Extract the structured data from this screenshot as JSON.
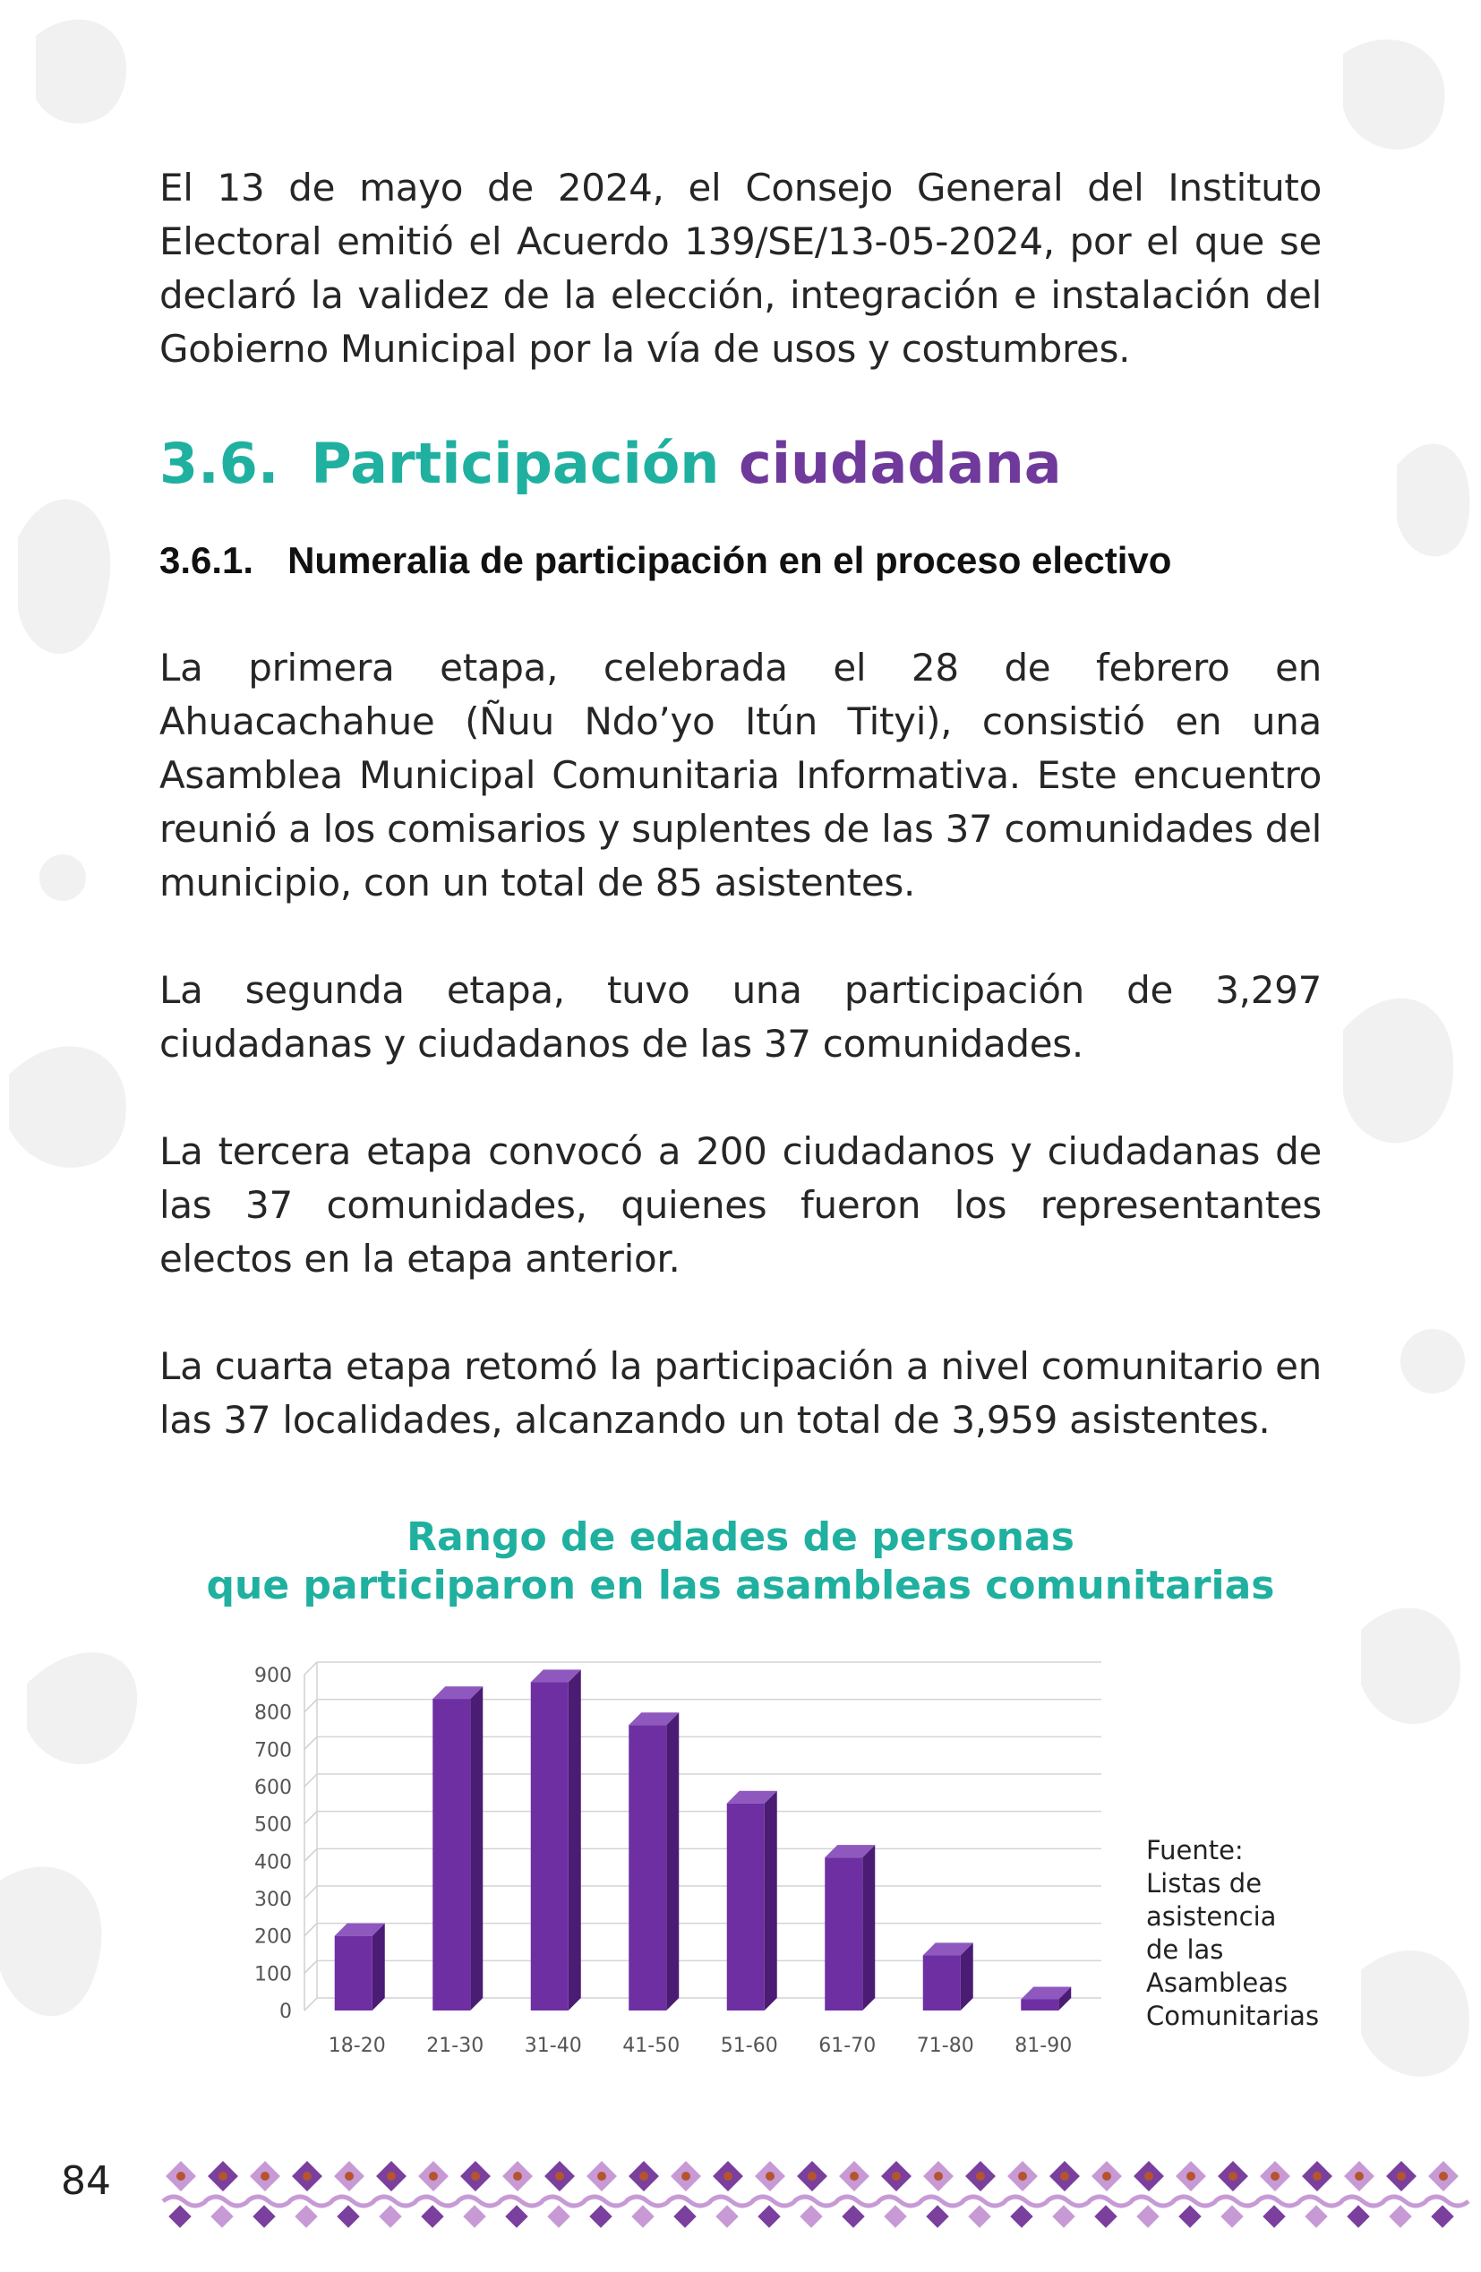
{
  "paragraphs": {
    "p1": "El 13 de mayo de 2024, el Consejo General del Instituto Electoral emitió el Acuerdo 139/SE/13-05-2024, por el que se declaró la validez de la elección, integración e instalación del Gobierno Municipal por la vía de usos y costumbres.",
    "p2": "La primera etapa, celebrada el 28 de febrero en Ahuacachahue (Ñuu Ndo’yo Itún Tityi), consistió en una Asamblea Municipal Comunitaria Informativa. Este encuentro reunió a los comisarios y suplentes de las 37 comunidades del municipio, con un total de 85 asistentes.",
    "p3": "La segunda etapa, tuvo una participación de 3,297 ciudadanas y ciudadanos de las 37 comunidades.",
    "p4": "La tercera etapa convocó a 200 ciudadanos y ciudadanas de las 37 comunidades, quienes fueron los representantes electos en la etapa anterior.",
    "p5": "La cuarta etapa retomó la participación a nivel comunitario en las 37 localidades, alcanzando un total de 3,959 asistentes."
  },
  "section": {
    "number": "3.6.",
    "title_part1": "Participación",
    "title_part2": "ciudadana",
    "subsection_number": "3.6.1.",
    "subsection_title": "Numeralia de participación en el proceso electivo"
  },
  "chart_heading": {
    "line1": "Rango de edades de personas",
    "line2": "que participaron en las asambleas comunitarias"
  },
  "source_note": [
    "Fuente:",
    "Listas de",
    "asistencia",
    "de las",
    "Asambleas",
    "Comunitarias"
  ],
  "page_number": "84",
  "colors": {
    "teal": "#1fb0a0",
    "purple": "#6f3a9b",
    "bar_front": "#6e2fa3",
    "bar_side": "#4a1c73",
    "bar_top": "#8f58bf"
  },
  "chart_data": {
    "type": "bar",
    "title": "",
    "categories": [
      "18-20",
      "21-30",
      "31-40",
      "41-50",
      "51-60",
      "61-70",
      "71-80",
      "81-90"
    ],
    "values": [
      200,
      835,
      880,
      765,
      555,
      410,
      148,
      30
    ],
    "yticks": [
      0,
      100,
      200,
      300,
      400,
      500,
      600,
      700,
      800,
      900
    ],
    "ylim": [
      0,
      900
    ],
    "grid": true,
    "legend": "none",
    "style": "3d-column"
  }
}
